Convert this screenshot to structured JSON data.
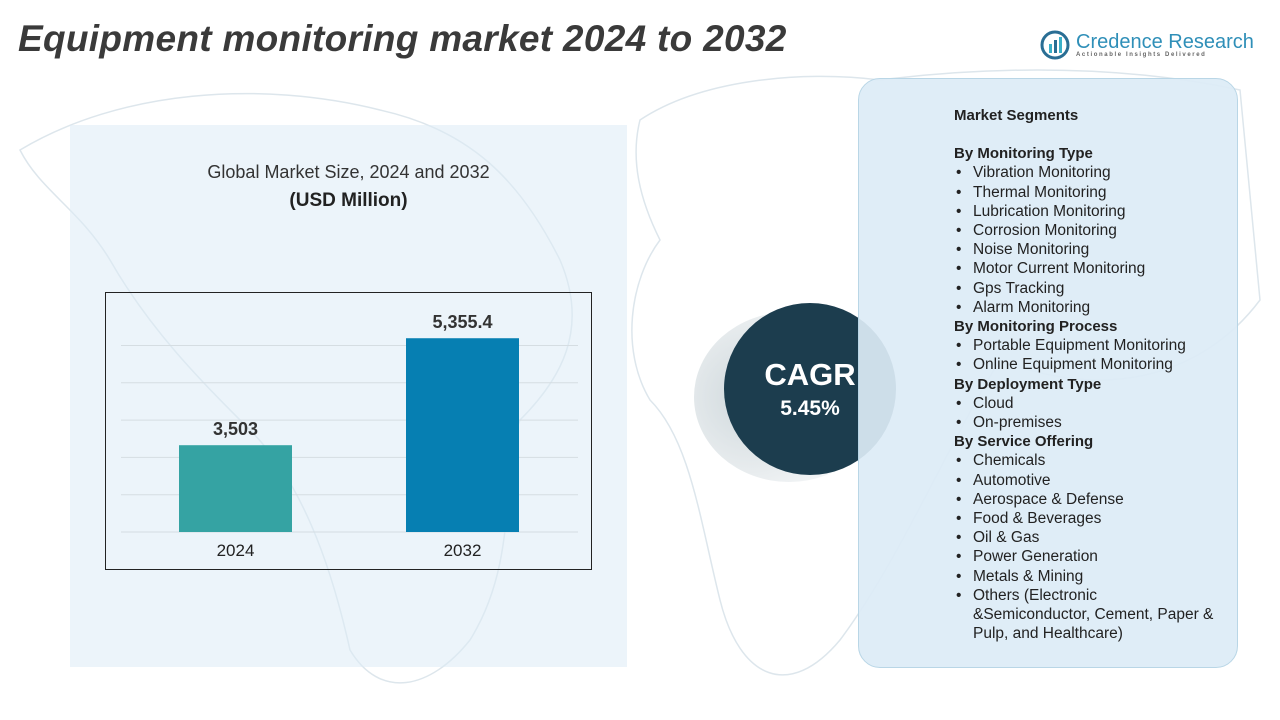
{
  "title": "Equipment monitoring market 2024 to 2032",
  "logo": {
    "name": "Credence Research",
    "tagline": "Actionable Insights Delivered"
  },
  "chart_data": {
    "type": "bar",
    "title": "Global Market Size, 2024 and 2032",
    "subtitle": "(USD Million)",
    "categories": [
      "2024",
      "2032"
    ],
    "values": [
      3503,
      5355.4
    ],
    "data_labels": [
      "3,503",
      "5,355.4"
    ],
    "colors": [
      "#35a3a3",
      "#067fb2"
    ],
    "ylim": [
      2000,
      6000
    ],
    "grid": true
  },
  "cagr": {
    "label": "CAGR",
    "value": "5.45%"
  },
  "segments": {
    "title": "Market Segments",
    "groups": [
      {
        "heading": "By Monitoring Type",
        "items": [
          "Vibration Monitoring",
          "Thermal Monitoring",
          "Lubrication Monitoring",
          "Corrosion Monitoring",
          "Noise Monitoring",
          "Motor Current Monitoring",
          "Gps Tracking",
          "Alarm Monitoring"
        ]
      },
      {
        "heading": "By Monitoring Process",
        "items": [
          "Portable Equipment Monitoring",
          "Online Equipment Monitoring"
        ]
      },
      {
        "heading": "By Deployment Type",
        "items": [
          "Cloud",
          "On-premises"
        ]
      },
      {
        "heading": "By Service Offering",
        "items": [
          "Chemicals",
          "Automotive",
          "Aerospace & Defense",
          "Food & Beverages",
          "Oil & Gas",
          "Power Generation",
          "Metals & Mining",
          "Others (Electronic &Semiconductor, Cement, Paper & Pulp, and Healthcare)"
        ]
      }
    ]
  }
}
